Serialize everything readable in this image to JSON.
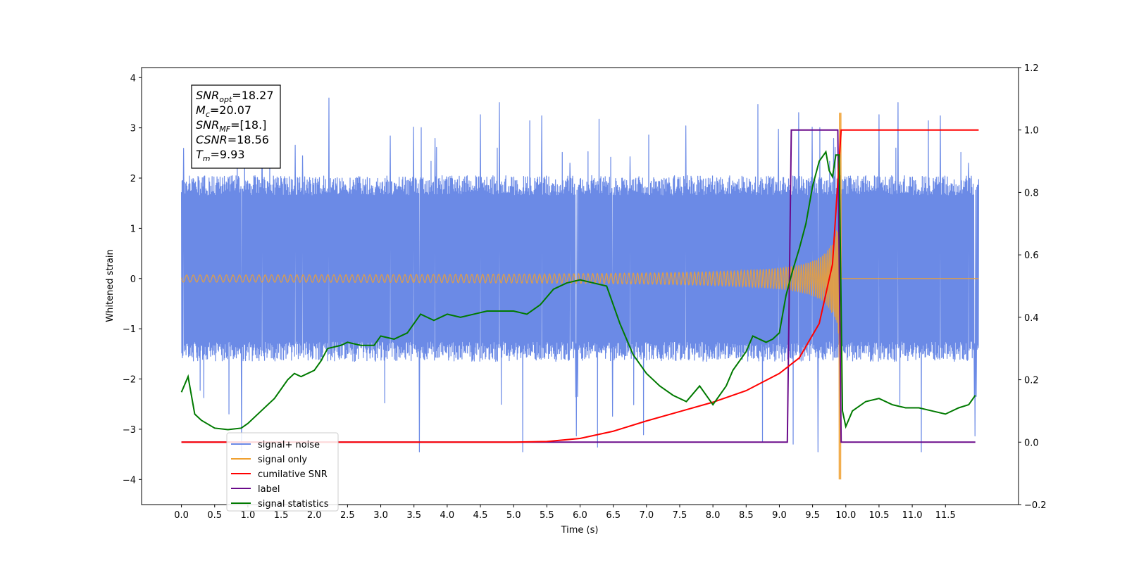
{
  "chart_data": {
    "type": "line",
    "xlabel": "Time (s)",
    "ylabel": "Whitened strain",
    "xlim": [
      -0.6,
      12.6
    ],
    "ylim": [
      -4.5,
      4.2
    ],
    "y2lim": [
      -0.2,
      1.2
    ],
    "x_ticks": [
      "0.0",
      "0.5",
      "1.0",
      "1.5",
      "2.0",
      "2.5",
      "3.0",
      "3.5",
      "4.0",
      "4.5",
      "5.0",
      "5.5",
      "6.0",
      "6.5",
      "7.0",
      "7.5",
      "8.0",
      "8.5",
      "9.0",
      "9.5",
      "10.0",
      "10.5",
      "11.0",
      "11.5"
    ],
    "x_tick_values": [
      0,
      0.5,
      1,
      1.5,
      2,
      2.5,
      3,
      3.5,
      4,
      4.5,
      5,
      5.5,
      6,
      6.5,
      7,
      7.5,
      8,
      8.5,
      9,
      9.5,
      10,
      10.5,
      11,
      11.5
    ],
    "y_ticks": [
      "4",
      "3",
      "2",
      "1",
      "0",
      "−1",
      "−2",
      "−3",
      "−4"
    ],
    "y_tick_values": [
      4,
      3,
      2,
      1,
      0,
      -1,
      -2,
      -3,
      -4
    ],
    "y2_ticks": [
      "1.2",
      "1.0",
      "0.8",
      "0.6",
      "0.4",
      "0.2",
      "0.0",
      "−0.2"
    ],
    "y2_tick_values": [
      1.2,
      1.0,
      0.8,
      0.6,
      0.4,
      0.2,
      0.0,
      -0.2
    ],
    "legend_position": "lower-left",
    "info_box": [
      {
        "main": "SNR",
        "sub": "opt",
        "value": "=18.27"
      },
      {
        "main": "M",
        "sub": "c",
        "value": "=20.07"
      },
      {
        "main": "SNR",
        "sub": "MF",
        "value": "=[18.]"
      },
      {
        "main": "CSNR",
        "sub": "",
        "value": "=18.56"
      },
      {
        "main": "T",
        "sub": "m",
        "value": "=9.93"
      }
    ],
    "series": [
      {
        "name": "signal+ noise",
        "color": "#6b8ae6",
        "axis": "left",
        "kind": "noise_band",
        "t_start": 0.0,
        "t_end": 12.0,
        "band_upper": 1.9,
        "band_lower": -1.5,
        "max": 3.8,
        "min": -3.45
      },
      {
        "name": "signal only",
        "color": "#f0a030",
        "axis": "left",
        "kind": "chirp",
        "t_start": 0.0,
        "t_end": 12.0,
        "merger_time": 9.93,
        "peak_amplitude": 3.3,
        "min_amplitude": -4.0
      },
      {
        "name": "cumilative SNR",
        "color": "#ff0000",
        "axis": "right",
        "x": [
          0.0,
          5.0,
          5.5,
          6.0,
          6.5,
          7.0,
          7.5,
          8.0,
          8.5,
          9.0,
          9.3,
          9.6,
          9.8,
          9.93,
          12.0
        ],
        "y": [
          0.0,
          0.0,
          0.002,
          0.012,
          0.035,
          0.068,
          0.098,
          0.128,
          0.165,
          0.22,
          0.27,
          0.38,
          0.57,
          1.0,
          1.0
        ]
      },
      {
        "name": "label",
        "color": "#6a0a8a",
        "axis": "right",
        "x": [
          0.0,
          9.12,
          9.18,
          9.88,
          9.93,
          11.95
        ],
        "y": [
          0.0,
          0.0,
          1.0,
          1.0,
          0.0,
          0.0
        ]
      },
      {
        "name": "signal statistics",
        "color": "#007a00",
        "axis": "right",
        "x": [
          0.0,
          0.1,
          0.2,
          0.3,
          0.5,
          0.7,
          0.9,
          1.0,
          1.2,
          1.4,
          1.6,
          1.7,
          1.8,
          1.9,
          2.0,
          2.1,
          2.2,
          2.4,
          2.5,
          2.7,
          2.9,
          3.0,
          3.2,
          3.4,
          3.6,
          3.7,
          3.8,
          4.0,
          4.2,
          4.4,
          4.6,
          4.8,
          5.0,
          5.2,
          5.4,
          5.6,
          5.8,
          6.0,
          6.2,
          6.4,
          6.6,
          6.8,
          7.0,
          7.1,
          7.2,
          7.4,
          7.6,
          7.8,
          8.0,
          8.2,
          8.3,
          8.5,
          8.6,
          8.8,
          8.9,
          9.0,
          9.1,
          9.2,
          9.3,
          9.4,
          9.5,
          9.6,
          9.7,
          9.75,
          9.8,
          9.85,
          9.9,
          9.95,
          10.0,
          10.1,
          10.3,
          10.5,
          10.7,
          10.9,
          11.1,
          11.3,
          11.5,
          11.7,
          11.85,
          11.95
        ],
        "y": [
          0.16,
          0.21,
          0.09,
          0.07,
          0.045,
          0.04,
          0.045,
          0.06,
          0.1,
          0.14,
          0.2,
          0.22,
          0.21,
          0.22,
          0.23,
          0.26,
          0.3,
          0.31,
          0.32,
          0.31,
          0.31,
          0.34,
          0.33,
          0.35,
          0.41,
          0.4,
          0.39,
          0.41,
          0.4,
          0.41,
          0.42,
          0.42,
          0.42,
          0.41,
          0.44,
          0.49,
          0.51,
          0.52,
          0.51,
          0.5,
          0.38,
          0.28,
          0.22,
          0.2,
          0.18,
          0.15,
          0.13,
          0.18,
          0.12,
          0.18,
          0.23,
          0.29,
          0.34,
          0.32,
          0.33,
          0.35,
          0.47,
          0.55,
          0.62,
          0.7,
          0.82,
          0.9,
          0.93,
          0.87,
          0.85,
          0.92,
          0.92,
          0.1,
          0.05,
          0.1,
          0.13,
          0.14,
          0.12,
          0.11,
          0.11,
          0.1,
          0.09,
          0.11,
          0.12,
          0.15
        ]
      }
    ]
  }
}
